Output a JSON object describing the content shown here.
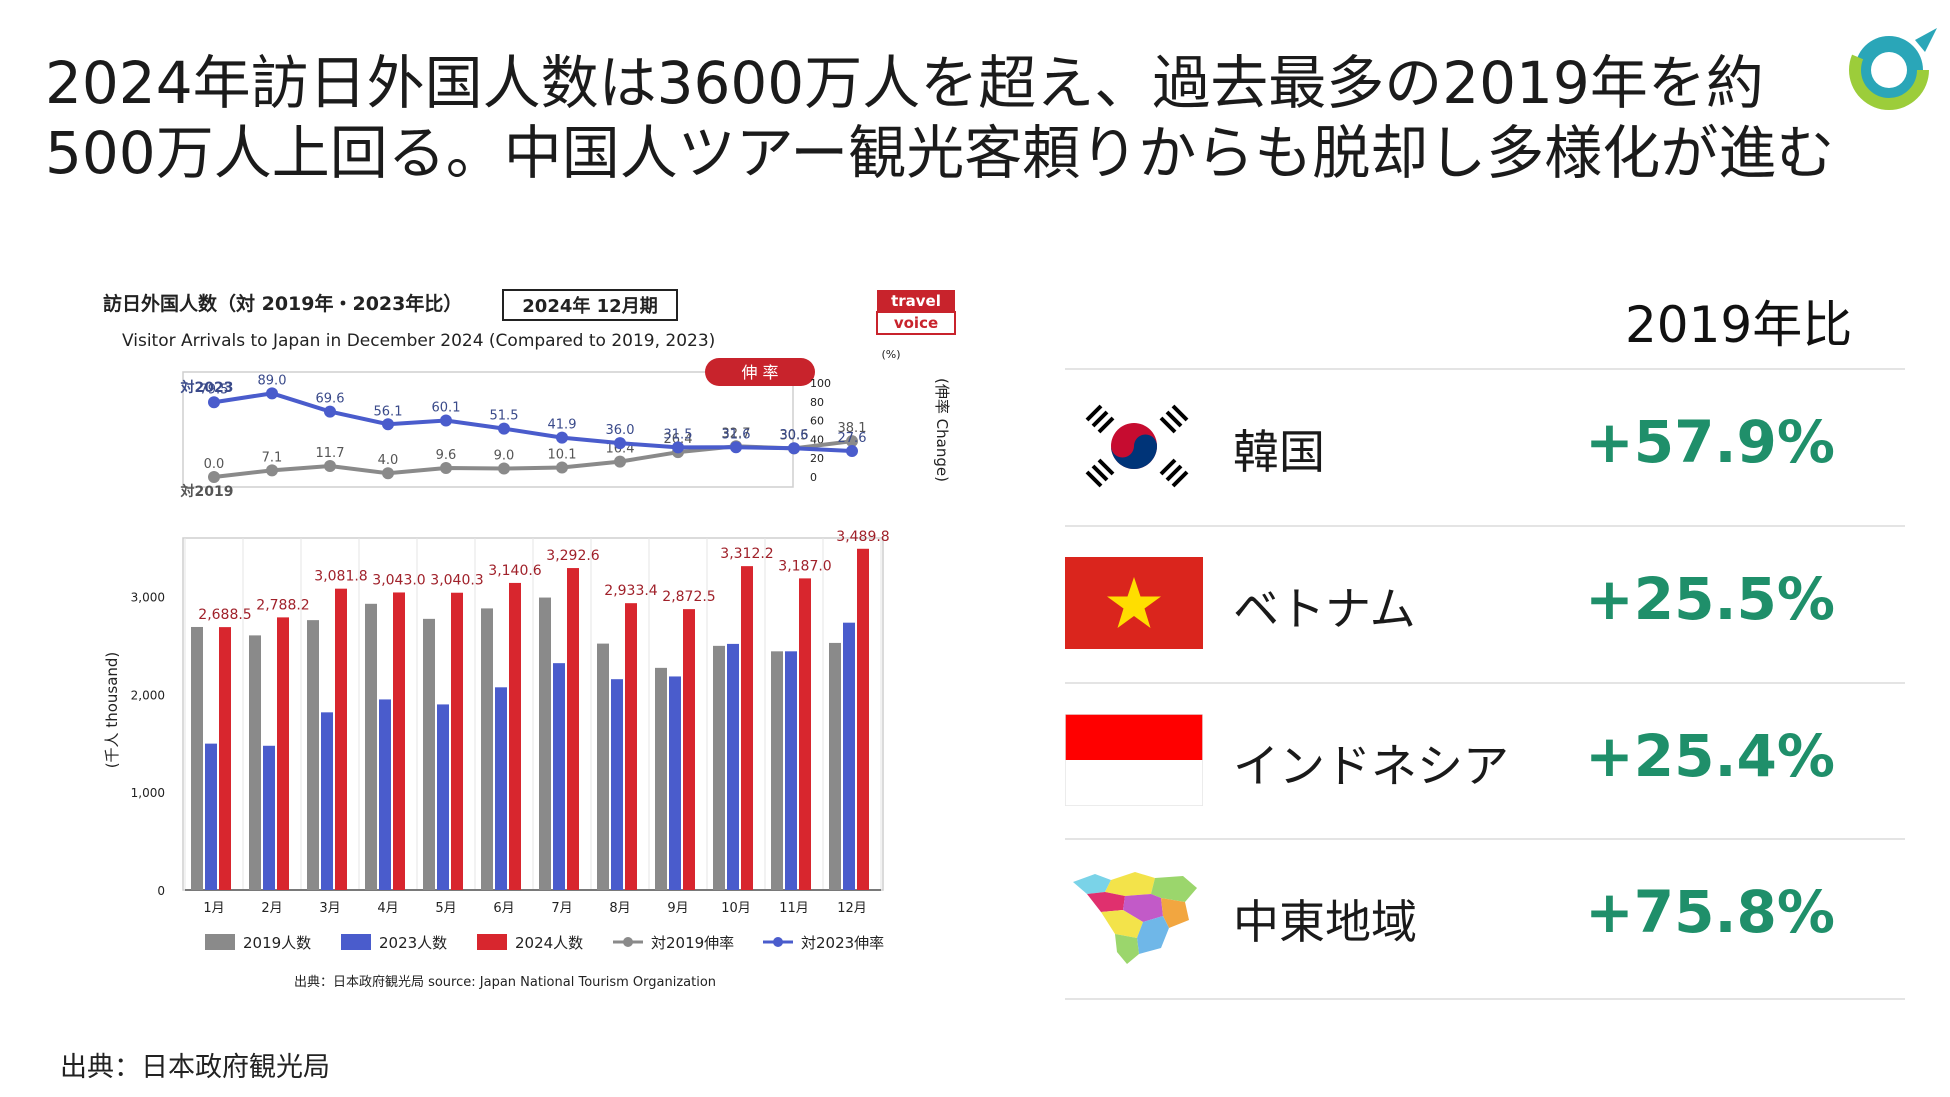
{
  "headline": "2024年訪日外国人数は3600万人を超え、過去最多の2019年を約500万人上回る。中国人ツアー観光客頼りからも脱却し多様化が進む",
  "source_note": "出典：日本政府観光局",
  "chart_data": {
    "type": "bar",
    "title": "訪日外国人数（対 2019年・2023年比）",
    "subtitle": "Visitor Arrivals to Japan in December 2024 (Compared to 2019, 2023)",
    "period_badge": "2024年 12月期",
    "brand": [
      "travel",
      "voice"
    ],
    "rate_badge": "伸 率",
    "ylabel": "(千人 thousand)",
    "y2label": "(伸率 Change)",
    "y2unit": "(%)",
    "source": "出典：日本政府観光局 source: Japan National Tourism Organization",
    "categories": [
      "1月",
      "2月",
      "3月",
      "4月",
      "5月",
      "6月",
      "7月",
      "8月",
      "9月",
      "10月",
      "11月",
      "12月"
    ],
    "ylim": [
      0,
      3600
    ],
    "yticks": [
      "0",
      "1,000",
      "2,000",
      "3,000"
    ],
    "y2lim": [
      0,
      100
    ],
    "y2ticks": [
      "0",
      "20",
      "40",
      "60",
      "80",
      "100"
    ],
    "series": [
      {
        "name": "2019人数",
        "color": "#8a8a8a",
        "values": [
          2690,
          2604,
          2760,
          2927,
          2773,
          2880,
          2991,
          2520,
          2272,
          2497,
          2441,
          2527
        ]
      },
      {
        "name": "2023人数",
        "color": "#4a5ccc",
        "values": [
          1497,
          1475,
          1817,
          1949,
          1898,
          2073,
          2320,
          2156,
          2184,
          2517,
          2441,
          2734
        ]
      },
      {
        "name": "2024人数",
        "color": "#d8262e",
        "values": [
          2688.5,
          2788.2,
          3081.8,
          3043.0,
          3040.3,
          3140.6,
          3292.6,
          2933.4,
          2872.5,
          3312.2,
          3187.0,
          3489.8
        ],
        "labels": [
          "2,688.5",
          "2,788.2",
          "3,081.8",
          "3,043.0",
          "3,040.3",
          "3,140.6",
          "3,292.6",
          "2,933.4",
          "2,872.5",
          "3,312.2",
          "3,187.0",
          "3,489.8"
        ]
      }
    ],
    "rate_series": [
      {
        "name": "対2019伸率",
        "tag": "対2019",
        "color": "#8a8a8a",
        "values": [
          0.0,
          7.1,
          11.7,
          4.0,
          9.6,
          9.0,
          10.1,
          16.4,
          26.4,
          32.7,
          30.5,
          38.1
        ],
        "labels": [
          "0.0",
          "7.1",
          "11.7",
          "4.0",
          "9.6",
          "9.0",
          "10.1",
          "16.4",
          "26.4",
          "32.7",
          "30.5",
          "38.1"
        ]
      },
      {
        "name": "対2023伸率",
        "tag": "対2023",
        "color": "#4a5ccc",
        "values": [
          79.5,
          89.0,
          69.6,
          56.1,
          60.1,
          51.5,
          41.9,
          36.0,
          31.5,
          31.6,
          30.6,
          27.6
        ],
        "labels": [
          "79.5",
          "89.0",
          "69.6",
          "56.1",
          "60.1",
          "51.5",
          "41.9",
          "36.0",
          "31.5",
          "31.6",
          "30.6",
          "27.6"
        ]
      }
    ]
  },
  "comparison": {
    "header": "2019年比",
    "rows": [
      {
        "name": "韓国",
        "value": "+57.9%",
        "flag": "korea-flag-icon"
      },
      {
        "name": "ベトナム",
        "value": "+25.5%",
        "flag": "vietnam-flag-icon"
      },
      {
        "name": "インドネシア",
        "value": "+25.4%",
        "flag": "indonesia-flag-icon"
      },
      {
        "name": "中東地域",
        "value": "+75.8%",
        "flag": "middle-east-map-icon"
      }
    ],
    "accent": "#1f8f6a"
  }
}
